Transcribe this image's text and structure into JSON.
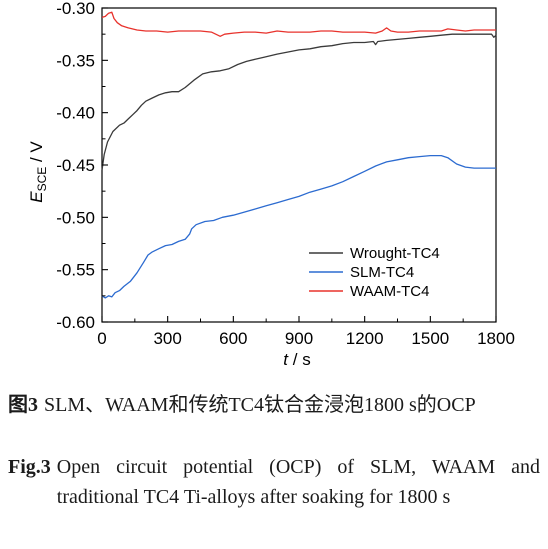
{
  "chart_data": {
    "type": "line",
    "title": "",
    "xlabel_italic": "t",
    "xlabel_unit": " / s",
    "ylabel_italic": "E",
    "ylabel_sub": "SCE",
    "ylabel_unit": " / V",
    "xlim": [
      0,
      1800
    ],
    "ylim": [
      -0.6,
      -0.3
    ],
    "x_ticks": [
      0,
      300,
      600,
      900,
      1200,
      1500,
      1800
    ],
    "x_tick_labels": [
      "0",
      "300",
      "600",
      "900",
      "1200",
      "1500",
      "1800"
    ],
    "y_ticks": [
      -0.6,
      -0.55,
      -0.5,
      -0.45,
      -0.4,
      -0.35,
      -0.3
    ],
    "y_tick_labels": [
      "-0.60",
      "-0.55",
      "-0.50",
      "-0.45",
      "-0.40",
      "-0.35",
      "-0.30"
    ],
    "grid": false,
    "legend_position": "bottom-right",
    "series": [
      {
        "name": "Wrought-TC4",
        "color": "#3a3a3a",
        "points": [
          [
            0,
            -0.455
          ],
          [
            10,
            -0.44
          ],
          [
            25,
            -0.428
          ],
          [
            50,
            -0.418
          ],
          [
            80,
            -0.412
          ],
          [
            100,
            -0.41
          ],
          [
            120,
            -0.406
          ],
          [
            140,
            -0.402
          ],
          [
            160,
            -0.398
          ],
          [
            180,
            -0.393
          ],
          [
            200,
            -0.389
          ],
          [
            230,
            -0.386
          ],
          [
            260,
            -0.383
          ],
          [
            290,
            -0.381
          ],
          [
            320,
            -0.38
          ],
          [
            350,
            -0.38
          ],
          [
            380,
            -0.376
          ],
          [
            420,
            -0.369
          ],
          [
            460,
            -0.363
          ],
          [
            500,
            -0.361
          ],
          [
            540,
            -0.36
          ],
          [
            580,
            -0.358
          ],
          [
            620,
            -0.354
          ],
          [
            660,
            -0.351
          ],
          [
            700,
            -0.349
          ],
          [
            740,
            -0.347
          ],
          [
            800,
            -0.344
          ],
          [
            850,
            -0.342
          ],
          [
            900,
            -0.34
          ],
          [
            950,
            -0.339
          ],
          [
            1000,
            -0.337
          ],
          [
            1050,
            -0.336
          ],
          [
            1100,
            -0.334
          ],
          [
            1150,
            -0.333
          ],
          [
            1200,
            -0.333
          ],
          [
            1240,
            -0.332
          ],
          [
            1250,
            -0.335
          ],
          [
            1260,
            -0.332
          ],
          [
            1300,
            -0.331
          ],
          [
            1350,
            -0.33
          ],
          [
            1400,
            -0.329
          ],
          [
            1450,
            -0.328
          ],
          [
            1500,
            -0.327
          ],
          [
            1550,
            -0.326
          ],
          [
            1600,
            -0.325
          ],
          [
            1650,
            -0.325
          ],
          [
            1700,
            -0.325
          ],
          [
            1750,
            -0.325
          ],
          [
            1780,
            -0.325
          ],
          [
            1790,
            -0.328
          ],
          [
            1800,
            -0.326
          ]
        ]
      },
      {
        "name": "SLM-TC4",
        "color": "#2c6bd0",
        "points": [
          [
            0,
            -0.575
          ],
          [
            15,
            -0.577
          ],
          [
            30,
            -0.575
          ],
          [
            45,
            -0.576
          ],
          [
            60,
            -0.572
          ],
          [
            80,
            -0.57
          ],
          [
            100,
            -0.566
          ],
          [
            130,
            -0.561
          ],
          [
            160,
            -0.553
          ],
          [
            190,
            -0.543
          ],
          [
            210,
            -0.536
          ],
          [
            230,
            -0.533
          ],
          [
            260,
            -0.53
          ],
          [
            290,
            -0.527
          ],
          [
            320,
            -0.526
          ],
          [
            350,
            -0.523
          ],
          [
            380,
            -0.521
          ],
          [
            400,
            -0.516
          ],
          [
            410,
            -0.511
          ],
          [
            430,
            -0.507
          ],
          [
            470,
            -0.504
          ],
          [
            510,
            -0.503
          ],
          [
            550,
            -0.5
          ],
          [
            600,
            -0.498
          ],
          [
            650,
            -0.495
          ],
          [
            700,
            -0.492
          ],
          [
            750,
            -0.489
          ],
          [
            800,
            -0.486
          ],
          [
            850,
            -0.483
          ],
          [
            900,
            -0.48
          ],
          [
            950,
            -0.476
          ],
          [
            1000,
            -0.473
          ],
          [
            1050,
            -0.47
          ],
          [
            1100,
            -0.466
          ],
          [
            1150,
            -0.461
          ],
          [
            1200,
            -0.456
          ],
          [
            1250,
            -0.451
          ],
          [
            1300,
            -0.447
          ],
          [
            1350,
            -0.445
          ],
          [
            1400,
            -0.443
          ],
          [
            1450,
            -0.442
          ],
          [
            1500,
            -0.441
          ],
          [
            1550,
            -0.441
          ],
          [
            1580,
            -0.443
          ],
          [
            1620,
            -0.449
          ],
          [
            1660,
            -0.452
          ],
          [
            1700,
            -0.453
          ],
          [
            1750,
            -0.453
          ],
          [
            1800,
            -0.453
          ]
        ]
      },
      {
        "name": "WAAM-TC4",
        "color": "#e8322c",
        "points": [
          [
            0,
            -0.309
          ],
          [
            15,
            -0.308
          ],
          [
            30,
            -0.305
          ],
          [
            45,
            -0.304
          ],
          [
            55,
            -0.31
          ],
          [
            70,
            -0.314
          ],
          [
            90,
            -0.317
          ],
          [
            120,
            -0.319
          ],
          [
            160,
            -0.321
          ],
          [
            200,
            -0.322
          ],
          [
            250,
            -0.322
          ],
          [
            300,
            -0.323
          ],
          [
            350,
            -0.322
          ],
          [
            400,
            -0.322
          ],
          [
            450,
            -0.322
          ],
          [
            500,
            -0.323
          ],
          [
            540,
            -0.327
          ],
          [
            560,
            -0.325
          ],
          [
            600,
            -0.324
          ],
          [
            650,
            -0.323
          ],
          [
            700,
            -0.323
          ],
          [
            750,
            -0.324
          ],
          [
            800,
            -0.322
          ],
          [
            850,
            -0.323
          ],
          [
            900,
            -0.323
          ],
          [
            950,
            -0.323
          ],
          [
            1000,
            -0.322
          ],
          [
            1050,
            -0.322
          ],
          [
            1100,
            -0.323
          ],
          [
            1150,
            -0.323
          ],
          [
            1200,
            -0.323
          ],
          [
            1250,
            -0.324
          ],
          [
            1280,
            -0.322
          ],
          [
            1300,
            -0.319
          ],
          [
            1320,
            -0.322
          ],
          [
            1350,
            -0.323
          ],
          [
            1400,
            -0.323
          ],
          [
            1450,
            -0.322
          ],
          [
            1500,
            -0.322
          ],
          [
            1550,
            -0.322
          ],
          [
            1580,
            -0.32
          ],
          [
            1620,
            -0.321
          ],
          [
            1660,
            -0.322
          ],
          [
            1700,
            -0.321
          ],
          [
            1750,
            -0.321
          ],
          [
            1800,
            -0.321
          ]
        ]
      }
    ]
  },
  "caption": {
    "cn_label": "图3",
    "cn_text": "SLM、WAAM和传统TC4钛合金浸泡1800 s的OCP",
    "en_label": "Fig.3",
    "en_text": "Open circuit potential (OCP) of SLM, WAAM and traditional TC4 Ti-alloys after soaking for 1800 s"
  }
}
